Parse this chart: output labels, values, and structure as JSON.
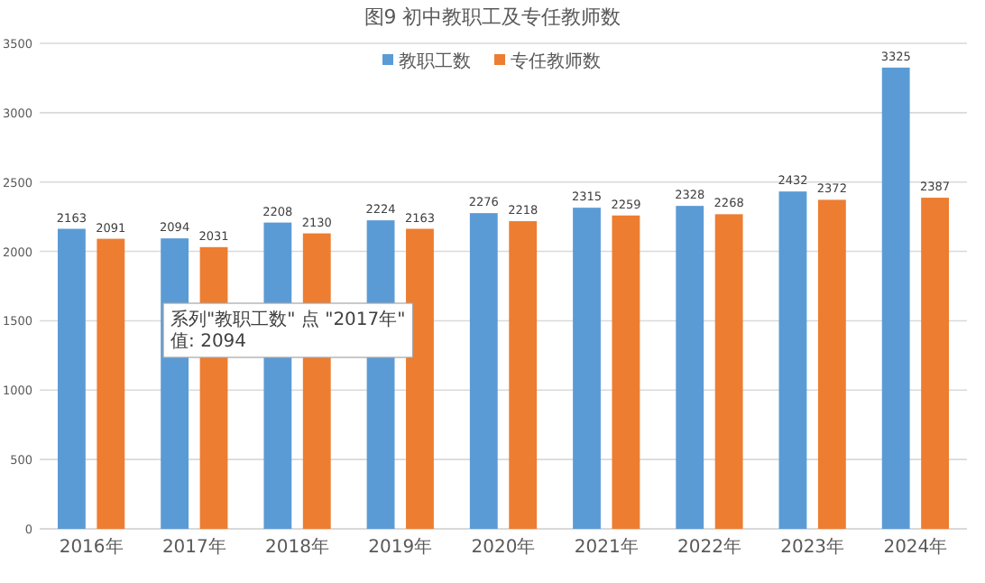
{
  "chart_data": {
    "type": "bar",
    "title": "图9  初中教职工及专任教师数",
    "categories": [
      "2016年",
      "2017年",
      "2018年",
      "2019年",
      "2020年",
      "2021年",
      "2022年",
      "2023年",
      "2024年"
    ],
    "series": [
      {
        "name": "教职工数",
        "color": "#5b9bd5",
        "values": [
          2163,
          2094,
          2208,
          2224,
          2276,
          2315,
          2328,
          2432,
          3325
        ]
      },
      {
        "name": "专任教师数",
        "color": "#ed7d31",
        "values": [
          2091,
          2031,
          2130,
          2163,
          2218,
          2259,
          2268,
          2372,
          2387
        ]
      }
    ],
    "ylim": [
      0,
      3500
    ],
    "yticks": [
      0,
      500,
      1000,
      1500,
      2000,
      2500,
      3000,
      3500
    ],
    "grid": "y",
    "legend": "top",
    "data_labels": true,
    "annotations": [
      "系列\"教职工数\" 点 \"2017年\" 值: 2094"
    ]
  }
}
